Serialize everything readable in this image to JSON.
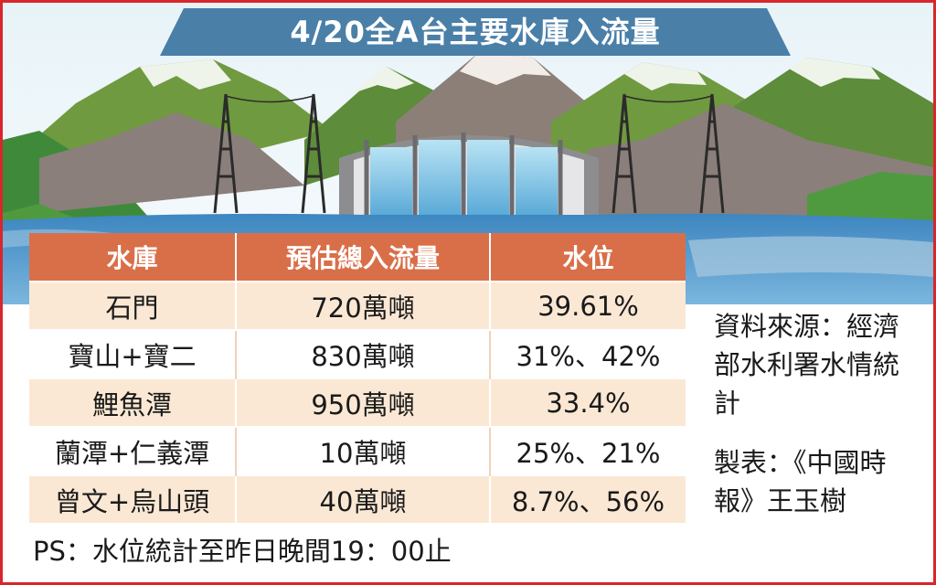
{
  "title": "4/20全A台主要水庫入流量",
  "table": {
    "headers": [
      "水庫",
      "預估總入流量",
      "水位"
    ],
    "rows": [
      [
        "石門",
        "720萬噸",
        "39.61%"
      ],
      [
        "寶山+寶二",
        "830萬噸",
        "31%、42%"
      ],
      [
        "鯉魚潭",
        "950萬噸",
        "33.4%"
      ],
      [
        "蘭潭+仁義潭",
        "10萬噸",
        "25%、21%"
      ],
      [
        "曾文+烏山頭",
        "40萬噸",
        "8.7%、56%"
      ]
    ]
  },
  "note": "PS：水位統計至昨日晚間19：00止",
  "source": "資料來源：經濟部水利署水情統計",
  "maker": "製表：《中國時報》王玉樹",
  "colors": {
    "frame": "#d8262b",
    "banner": "#4a7fa8",
    "header": "#d96f49",
    "row_tint": "#fbe8d4",
    "water": "#4f95c8"
  },
  "icons": [
    "mountain-range",
    "dam",
    "transmission-tower",
    "reservoir-water"
  ]
}
